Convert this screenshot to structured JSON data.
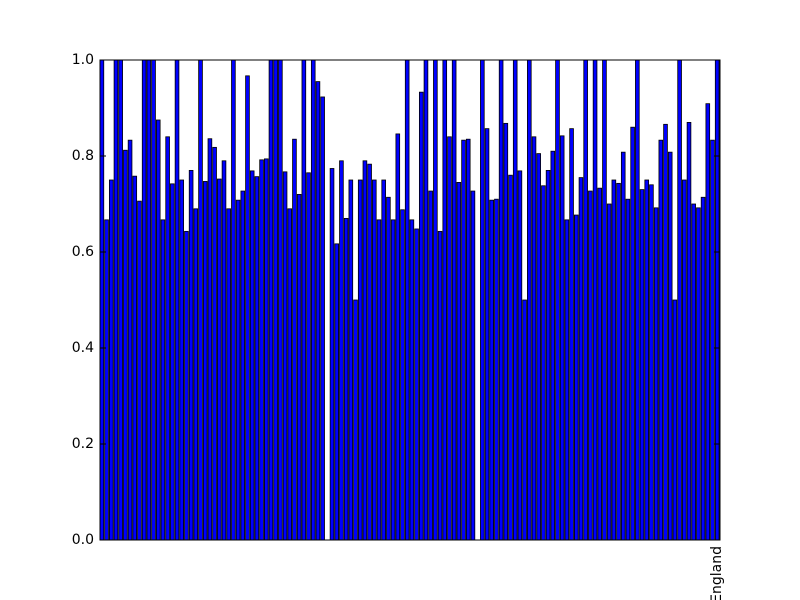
{
  "chart_data": {
    "type": "bar",
    "categories": [
      null,
      null,
      null,
      null,
      null,
      null,
      null,
      null,
      null,
      null,
      null,
      null,
      null,
      null,
      null,
      null,
      null,
      null,
      null,
      null,
      null,
      null,
      null,
      null,
      null,
      null,
      null,
      null,
      null,
      null,
      null,
      null,
      null,
      null,
      null,
      null,
      null,
      null,
      null,
      null,
      null,
      null,
      null,
      null,
      null,
      null,
      null,
      null,
      null,
      null,
      null,
      null,
      null,
      null,
      null,
      null,
      null,
      null,
      null,
      null,
      null,
      null,
      null,
      null,
      null,
      null,
      null,
      null,
      null,
      null,
      null,
      null,
      null,
      null,
      null,
      null,
      null,
      null,
      null,
      null,
      null,
      null,
      null,
      null,
      null,
      null,
      null,
      null,
      null,
      null,
      null,
      null,
      null,
      null,
      null,
      null,
      null,
      null,
      null,
      null,
      null,
      null,
      null,
      null,
      null,
      null,
      null,
      null,
      null,
      null,
      null,
      null,
      null,
      null,
      null,
      null,
      null,
      null,
      null,
      null,
      null,
      null,
      null,
      null,
      null,
      null,
      null,
      null,
      null,
      null,
      null,
      "England"
    ],
    "values": [
      1.0,
      0.667,
      0.75,
      1.0,
      1.0,
      0.812,
      0.833,
      0.758,
      0.706,
      1.0,
      1.0,
      1.0,
      0.875,
      0.667,
      0.84,
      0.742,
      1.0,
      0.75,
      0.643,
      0.77,
      0.69,
      1.0,
      0.747,
      0.836,
      0.818,
      0.752,
      0.79,
      0.69,
      1.0,
      0.708,
      0.727,
      0.967,
      0.769,
      0.757,
      0.792,
      0.794,
      1.0,
      1.0,
      1.0,
      0.767,
      0.69,
      0.835,
      0.72,
      1.0,
      0.765,
      1.0,
      0.955,
      0.923,
      0,
      0.774,
      0.617,
      0.79,
      0.67,
      0.75,
      0.5,
      0.75,
      0.79,
      0.783,
      0.75,
      0.667,
      0.75,
      0.714,
      0.667,
      0.846,
      0.688,
      1.0,
      0.667,
      0.648,
      0.933,
      1.0,
      0.727,
      1.0,
      0.643,
      1.0,
      0.84,
      1.0,
      0.745,
      0.833,
      0.835,
      0.727,
      0,
      1.0,
      0.857,
      0.708,
      0.71,
      1.0,
      0.868,
      0.76,
      1.0,
      0.769,
      0.5,
      1.0,
      0.84,
      0.805,
      0.738,
      0.77,
      0.81,
      1.0,
      0.842,
      0.667,
      0.857,
      0.677,
      0.755,
      1.0,
      0.727,
      1.0,
      0.733,
      1.0,
      0.7,
      0.75,
      0.743,
      0.808,
      0.71,
      0.86,
      1.0,
      0.73,
      0.75,
      0.74,
      0.692,
      0.833,
      0.866,
      0.808,
      0.5,
      1.0,
      0.75,
      0.87,
      0.7,
      0.692,
      0.714,
      0.909,
      0.833,
      1.0
    ],
    "color": "#0000ff",
    "ylim": [
      0,
      1
    ],
    "yticks": [
      {
        "value": 0,
        "label": "0.0"
      },
      {
        "value": 0.2,
        "label": "0.2"
      },
      {
        "value": 0.4,
        "label": "0.4"
      },
      {
        "value": 0.6,
        "label": "0.6"
      },
      {
        "value": 0.8,
        "label": "0.8"
      },
      {
        "value": 1,
        "label": "1.0"
      }
    ],
    "grid": false
  }
}
